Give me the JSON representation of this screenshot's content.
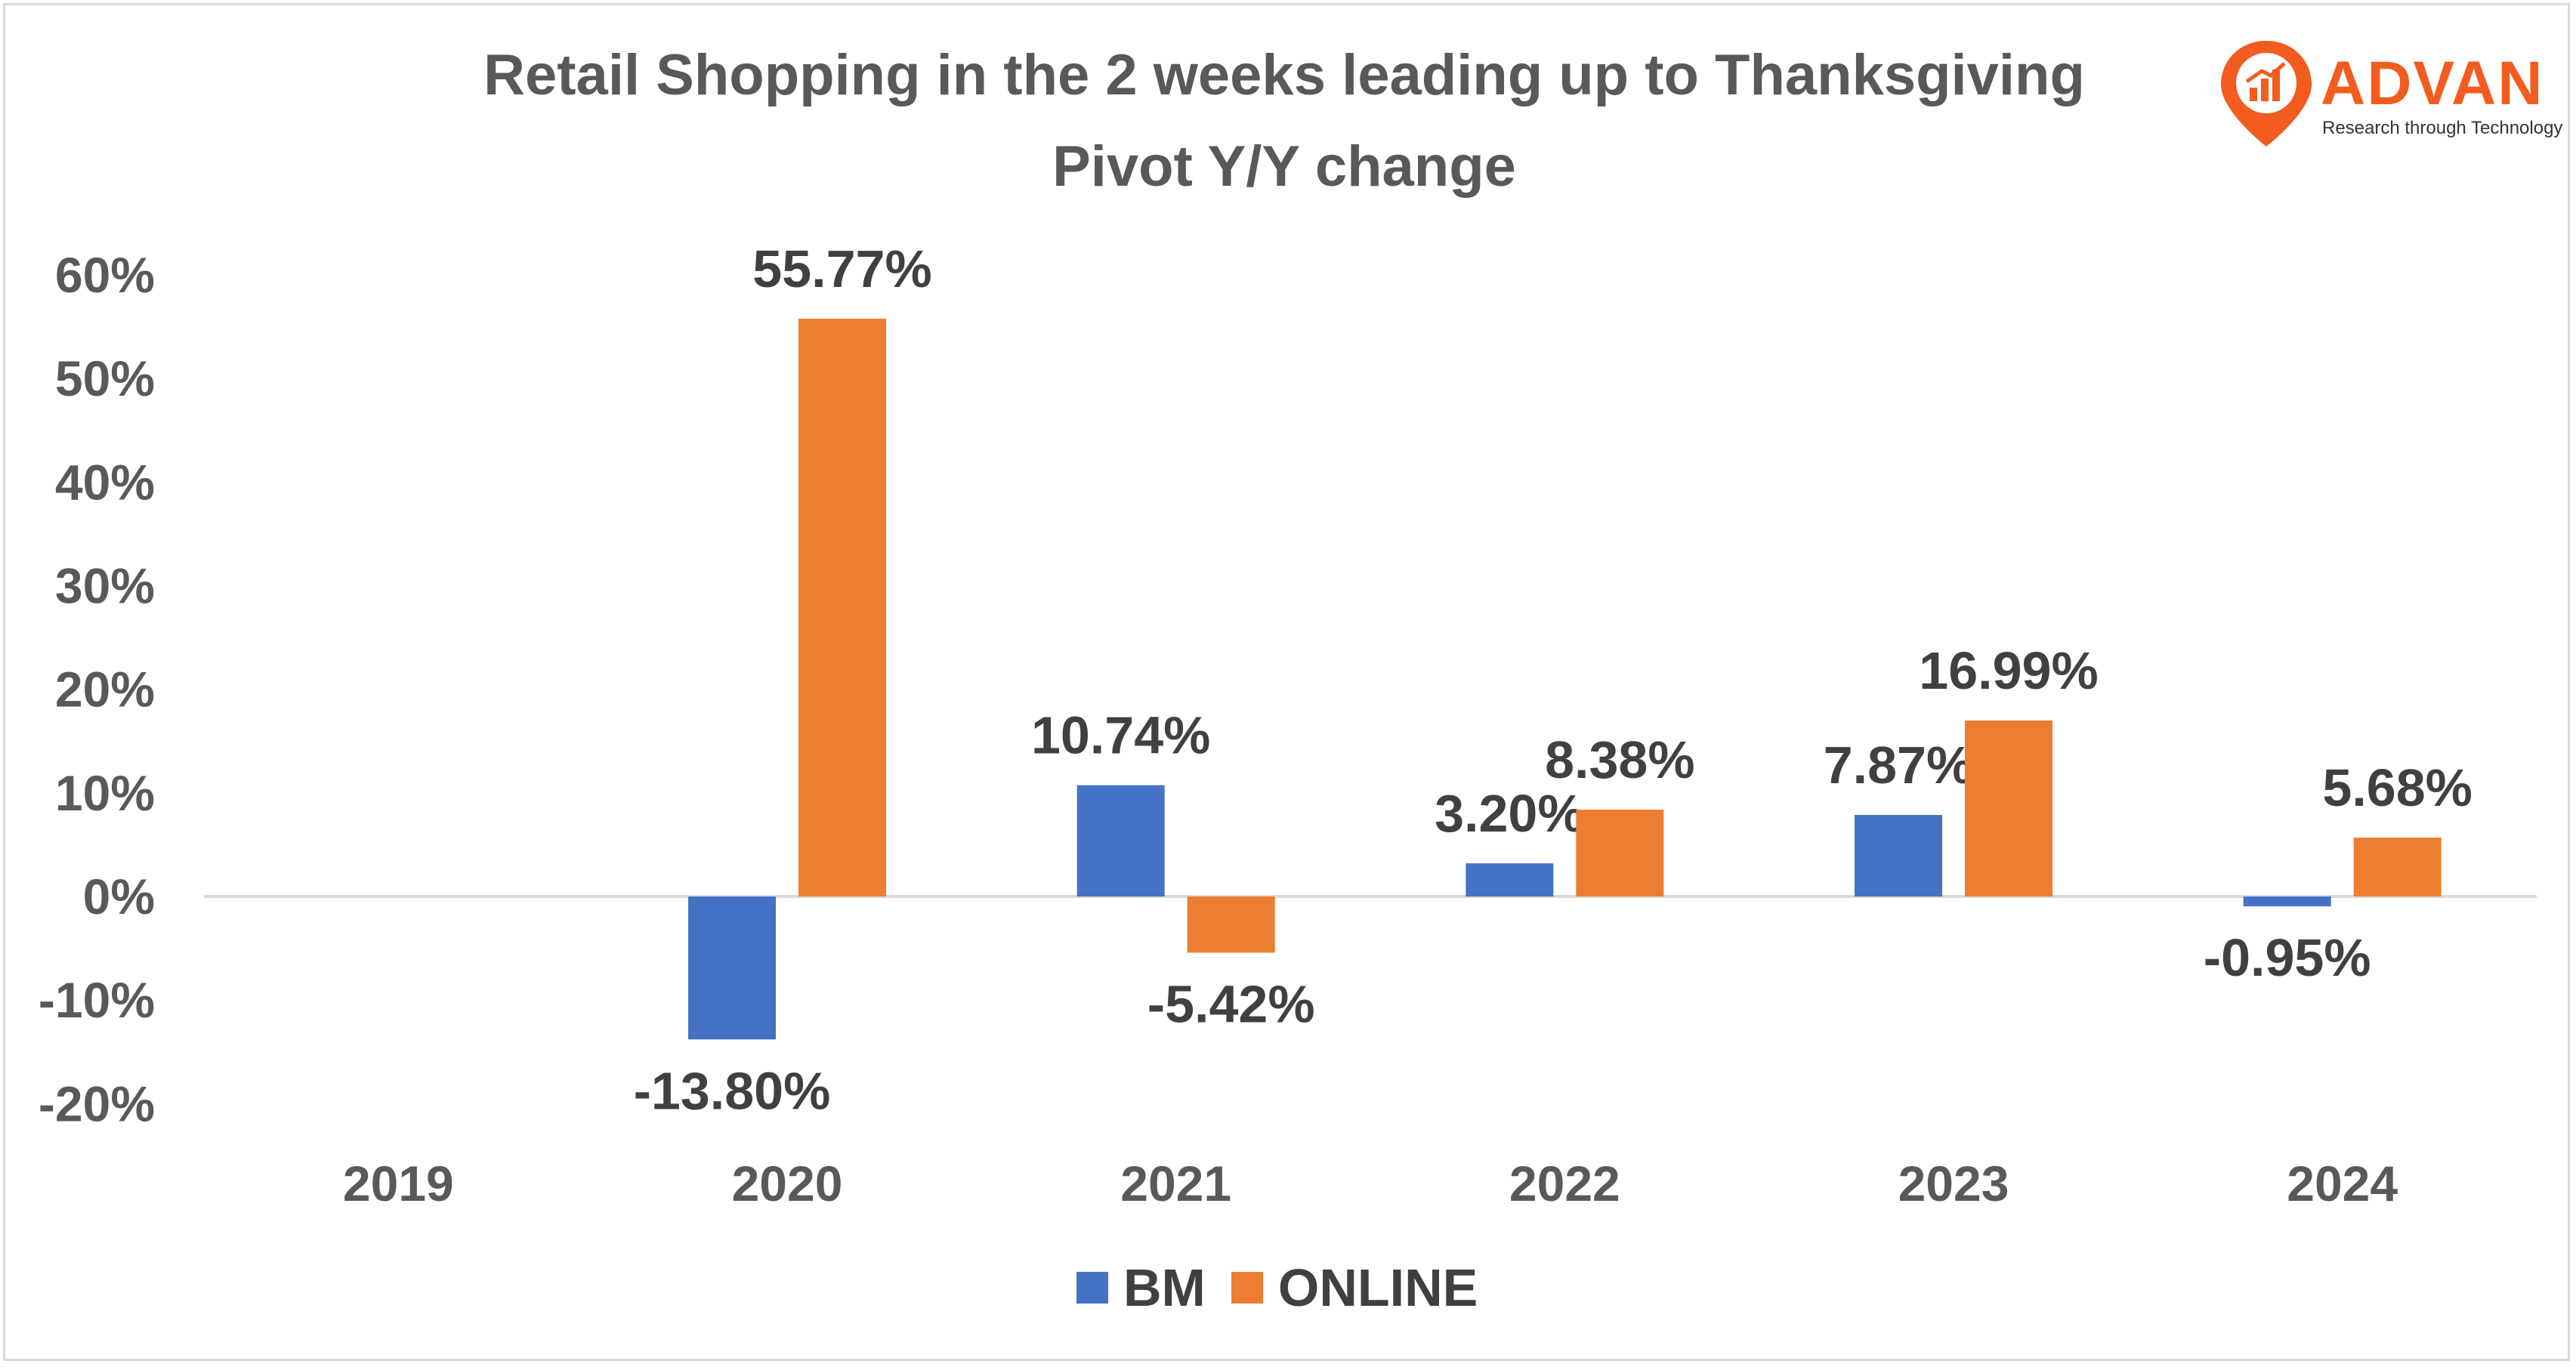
{
  "title_line1": "Retail Shopping in the 2 weeks leading up to Thanksgiving",
  "title_line2": "Pivot Y/Y change",
  "logo": {
    "brand": "ADVAN",
    "tagline": "Research through Technology",
    "color": "#f25c1f"
  },
  "chart_data": {
    "type": "bar",
    "categories": [
      "2019",
      "2020",
      "2021",
      "2022",
      "2023",
      "2024"
    ],
    "series": [
      {
        "name": "BM",
        "color": "#4472c4",
        "values": [
          null,
          -13.8,
          10.74,
          3.2,
          7.87,
          -0.95
        ],
        "labels": [
          "",
          "-13.80%",
          "10.74%",
          "3.20%",
          "7.87%",
          "-0.95%"
        ]
      },
      {
        "name": "ONLINE",
        "color": "#ed7d31",
        "values": [
          null,
          55.77,
          -5.42,
          8.38,
          16.99,
          5.68
        ],
        "labels": [
          "",
          "55.77%",
          "-5.42%",
          "8.38%",
          "16.99%",
          "5.68%"
        ]
      }
    ],
    "ylim": [
      -20,
      60
    ],
    "yticks": [
      60,
      50,
      40,
      30,
      20,
      10,
      0,
      -10,
      -20
    ],
    "ytick_labels": [
      "60%",
      "50%",
      "40%",
      "30%",
      "20%",
      "10%",
      "0%",
      "-10%",
      "-20%"
    ],
    "grid": false,
    "legend": "bottom"
  }
}
